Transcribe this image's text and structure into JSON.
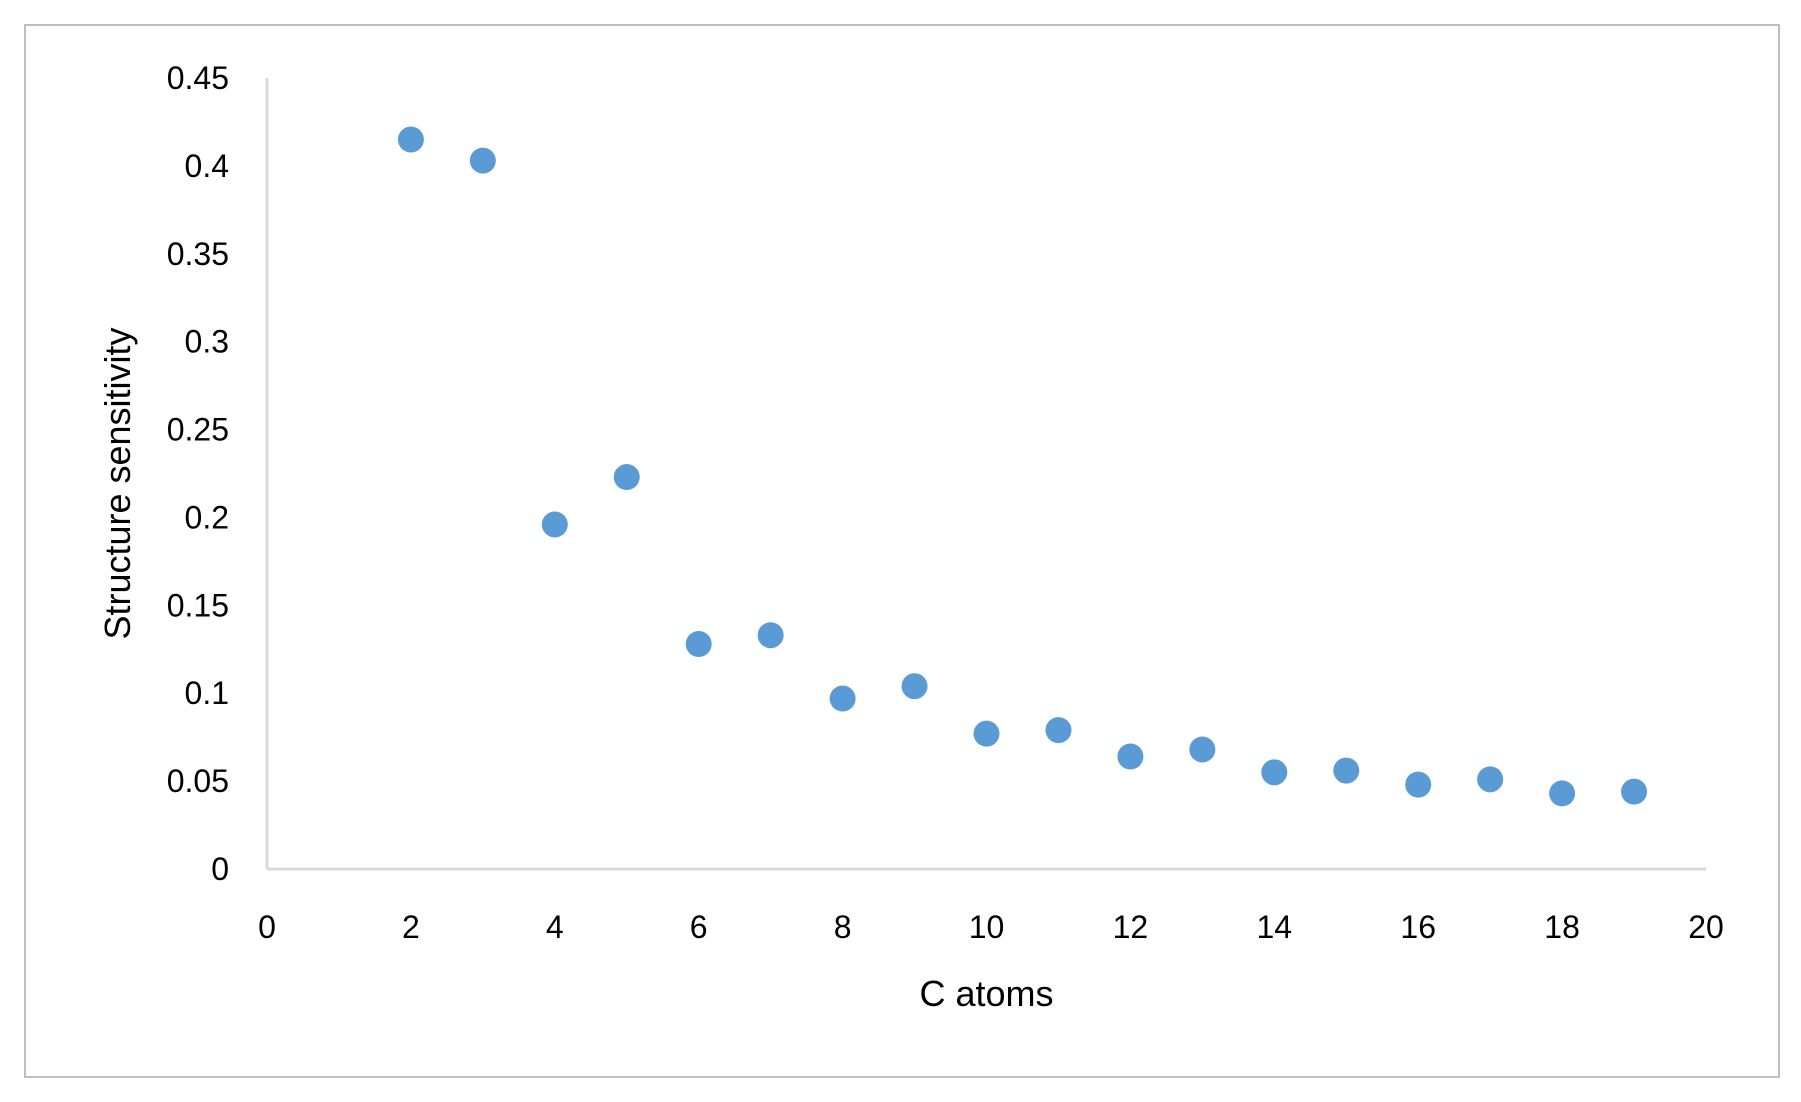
{
  "chart_data": {
    "type": "scatter",
    "title": "",
    "xlabel": "C atoms",
    "ylabel": "Structure sensitivity",
    "xlim": [
      0,
      20
    ],
    "ylim": [
      0,
      0.45
    ],
    "x_ticks": [
      0,
      2,
      4,
      6,
      8,
      10,
      12,
      14,
      16,
      18,
      20
    ],
    "y_ticks": [
      0,
      0.05,
      0.1,
      0.15,
      0.2,
      0.25,
      0.3,
      0.35,
      0.4,
      0.45
    ],
    "x_tick_labels": [
      "0",
      "2",
      "4",
      "6",
      "8",
      "10",
      "12",
      "14",
      "16",
      "18",
      "20"
    ],
    "y_tick_labels": [
      "0",
      "0.05",
      "0.1",
      "0.15",
      "0.2",
      "0.25",
      "0.3",
      "0.35",
      "0.4",
      "0.45"
    ],
    "grid": false,
    "legend": "none",
    "marker_color": "#5b9bd5",
    "axis_color": "#d9d9d9",
    "border_color": "#bfbfbf",
    "series": [
      {
        "x": [
          2,
          3,
          4,
          5,
          6,
          7,
          8,
          9,
          10,
          11,
          12,
          13,
          14,
          15,
          16,
          17,
          18,
          19
        ],
        "y": [
          0.415,
          0.403,
          0.196,
          0.223,
          0.128,
          0.133,
          0.097,
          0.104,
          0.077,
          0.079,
          0.064,
          0.068,
          0.055,
          0.056,
          0.048,
          0.051,
          0.043,
          0.044
        ]
      }
    ]
  }
}
